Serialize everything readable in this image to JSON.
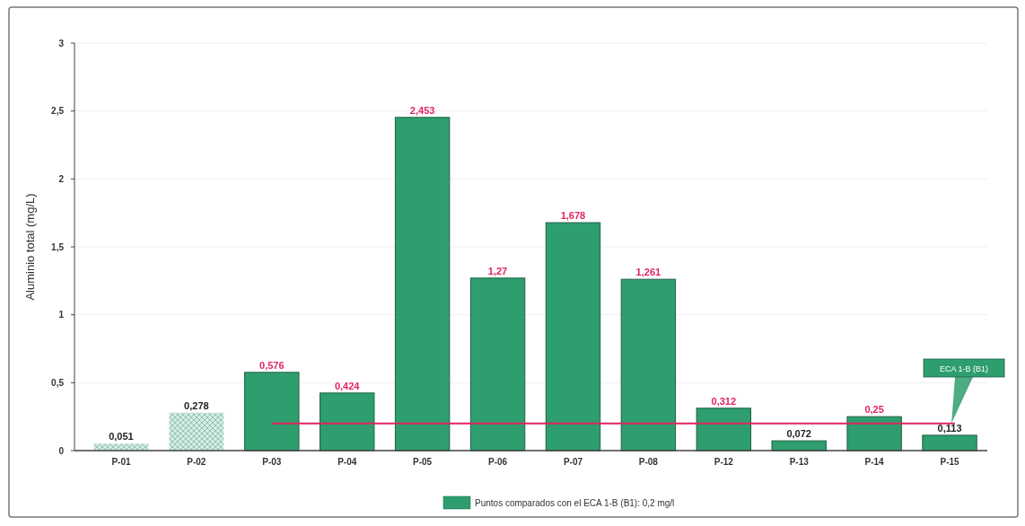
{
  "chart_data": {
    "type": "bar",
    "ylabel": "Aluminio total (mg/L)",
    "categories": [
      "P-01",
      "P-02",
      "P-03",
      "P-04",
      "P-05",
      "P-06",
      "P-07",
      "P-08",
      "P-12",
      "P-13",
      "P-14",
      "P-15"
    ],
    "series": [
      {
        "name": "Puntos comparados con el ECA 1-B (B1): 0,2 mg/l",
        "color": "#2e9e6e",
        "values": [
          0.051,
          0.278,
          0.576,
          0.424,
          2.453,
          1.27,
          1.678,
          1.261,
          0.312,
          0.072,
          0.25,
          0.113
        ],
        "colors": [
          "#d4ece4",
          "#d4ece4",
          "#2e9e6e",
          "#2e9e6e",
          "#2e9e6e",
          "#2e9e6e",
          "#2e9e6e",
          "#2e9e6e",
          "#2e9e6e",
          "#2e9e6e",
          "#2e9e6e",
          "#2e9e6e"
        ],
        "value_labels": [
          "0,051",
          "0,278",
          "0,576",
          "0,424",
          "2,453",
          "1,27",
          "1,678",
          "1,261",
          "0,312",
          "0,072",
          "0,25",
          "0,113"
        ]
      }
    ],
    "ylim": [
      0,
      3
    ],
    "yticks": [
      {
        "value": 0,
        "label": "0"
      },
      {
        "value": 0.5,
        "label": "0,5"
      },
      {
        "value": 1,
        "label": "1"
      },
      {
        "value": 1.5,
        "label": "1,5"
      },
      {
        "value": 2,
        "label": "2"
      },
      {
        "value": 2.5,
        "label": "2,5"
      },
      {
        "value": 3,
        "label": "3"
      }
    ],
    "grid": "y",
    "legend": "bottom",
    "ref_lines": [
      {
        "axis": "y",
        "value": 0.2,
        "label": "ECA 1-B (B1)",
        "color": "#e0245e"
      }
    ]
  }
}
